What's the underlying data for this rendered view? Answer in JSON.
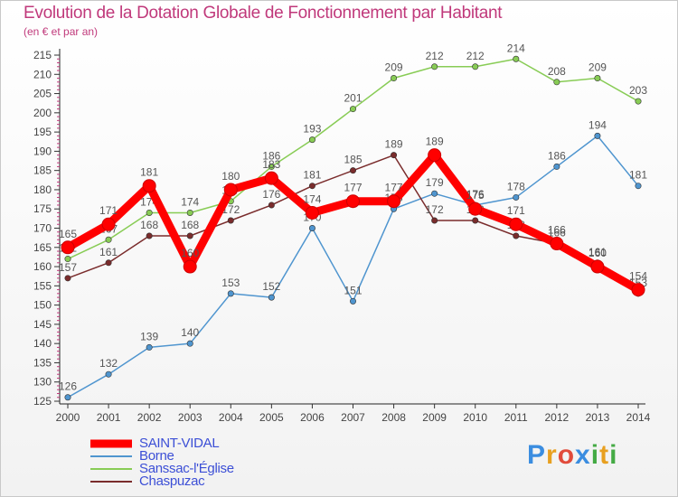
{
  "chart_data": {
    "type": "line",
    "title": "Evolution de la Dotation Globale de Fonctionnement par Habitant",
    "subtitle": "(en € et par an)",
    "x": [
      "2000",
      "2001",
      "2002",
      "2003",
      "2004",
      "2005",
      "2006",
      "2007",
      "2008",
      "2009",
      "2010",
      "2011",
      "2012",
      "2013",
      "2014"
    ],
    "ylim": [
      125,
      215
    ],
    "yticks": [
      125,
      130,
      135,
      140,
      145,
      150,
      155,
      160,
      165,
      170,
      175,
      180,
      185,
      190,
      195,
      200,
      205,
      210,
      215
    ],
    "grid": false,
    "legend_position": "bottom-left",
    "series": [
      {
        "name": "Borne",
        "color": "#4f95cf",
        "values": [
          126,
          132,
          139,
          140,
          153,
          152,
          170,
          151,
          175,
          179,
          176,
          178,
          186,
          194,
          181
        ]
      },
      {
        "name": "Sanssac-l'Église",
        "color": "#88cc55",
        "values": [
          162,
          167,
          174,
          174,
          177,
          186,
          193,
          201,
          209,
          212,
          212,
          214,
          208,
          209,
          203
        ]
      },
      {
        "name": "Chaspuzac",
        "color": "#7a2c2c",
        "values": [
          157,
          161,
          168,
          168,
          172,
          176,
          181,
          185,
          189,
          172,
          172,
          168,
          166,
          161,
          153
        ]
      },
      {
        "name": "SAINT-VIDAL",
        "color": "#ff0000",
        "values": [
          165,
          171,
          181,
          160,
          180,
          183,
          174,
          177,
          177,
          189,
          175,
          171,
          166,
          160,
          154
        ]
      }
    ]
  },
  "legend": {
    "items": [
      {
        "label": "SAINT-VIDAL",
        "color": "#ff0000"
      },
      {
        "label": "Borne",
        "color": "#4f95cf"
      },
      {
        "label": "Sanssac-l'Église",
        "color": "#88cc55"
      },
      {
        "label": "Chaspuzac",
        "color": "#7a2c2c"
      }
    ]
  },
  "brand": {
    "letters": [
      "P",
      "r",
      "o",
      "x",
      "i",
      "t",
      "i"
    ],
    "colors": [
      "#3b8de0",
      "#e8a020",
      "#e14b3b",
      "#3b8de0",
      "#44aa44",
      "#e8a020",
      "#44aa44"
    ]
  }
}
